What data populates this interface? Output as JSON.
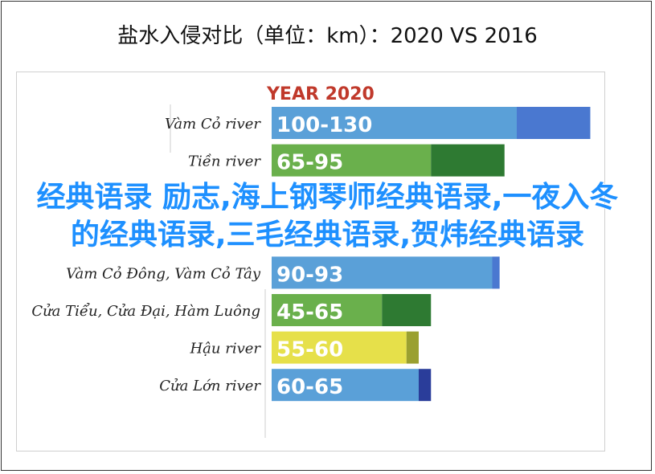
{
  "page": {
    "title": "盐水入侵对比（单位：km）：2020 VS 2016",
    "overlay_text": "经典语录 励志,海上钢琴师经典语录,一夜入冬的经典语录,三毛经典语录,贺炜经典语录"
  },
  "chart_data": {
    "type": "bar",
    "title": "YEAR 2020",
    "categories": [
      "Vàm Cỏ river",
      "Tiền river",
      "",
      "",
      "Vàm Cỏ Đông, Vàm Cỏ Tây",
      "Cửa Tiểu, Cửa Đại, Hàm Luông",
      "Hậu river",
      "Cửa Lớn river"
    ],
    "value_labels": [
      "100-130",
      "65-95",
      "",
      "",
      "90-93",
      "45-65",
      "55-60",
      "60-65"
    ],
    "series": [
      {
        "values": [
          100,
          65,
          null,
          null,
          90,
          45,
          55,
          60
        ],
        "color": "#5aa0d8"
      },
      {
        "values": [
          130,
          95,
          null,
          null,
          93,
          65,
          60,
          65
        ],
        "color": "#2e7d32"
      }
    ],
    "colors": {
      "row_blue": "#5aa0d8",
      "row_blue_end": "#4a78d0",
      "row_green": "#6ab04c",
      "row_green_end": "#2e7a32",
      "row_yellow": "#e6e04a",
      "row_yellow_end": "#9aa030",
      "row_navy_end": "#2a3d9a",
      "title_red": "#c0392b"
    }
  }
}
